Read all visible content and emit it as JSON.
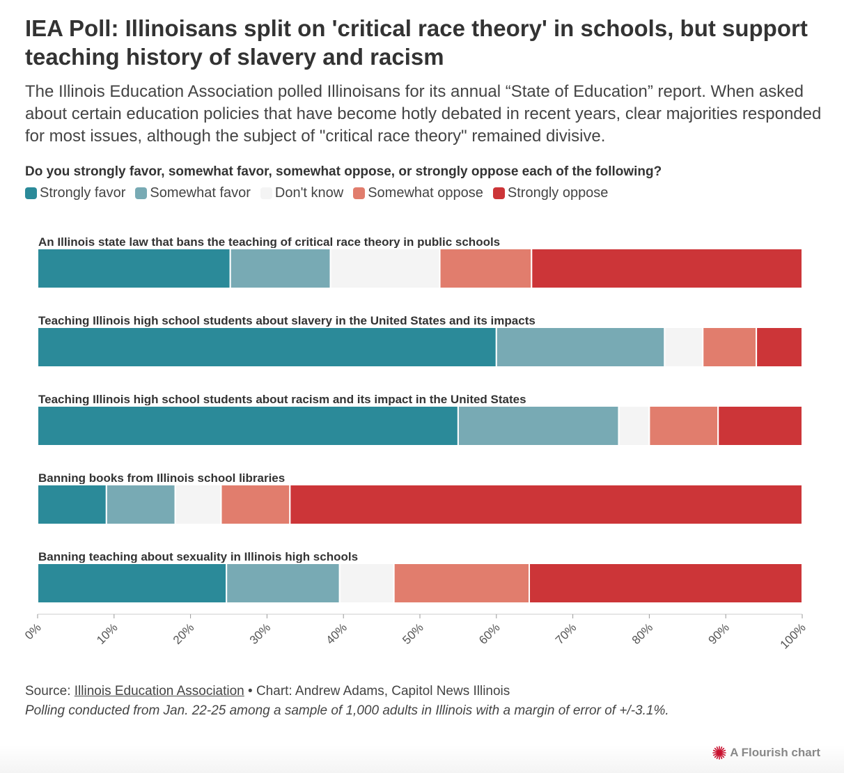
{
  "title": "IEA Poll: Illinoisans split on 'critical race theory' in schools, but support teaching history of slavery and racism",
  "subtitle": "The Illinois Education Association polled Illinoisans for its annual “State of Education” report. When asked about certain education policies that have become hotly debated in recent years, clear majorities responded for most issues, although the subject of \"critical race theory\" remained divisive.",
  "question": "Do you strongly favor, somewhat favor, somewhat oppose, or strongly oppose each of the following?",
  "colors": {
    "strongly_favor": "#2b8a99",
    "somewhat_favor": "#78aab4",
    "dont_know": "#f4f4f4",
    "somewhat_oppose": "#e17d6d",
    "strongly_oppose": "#cc3538"
  },
  "chart_data": {
    "type": "bar",
    "orientation": "horizontal",
    "stacked": true,
    "categories": [
      "An Illinois state law that bans the teaching of critical race theory in public schools",
      "Teaching Illinois high school students about slavery in the United States and its impacts",
      "Teaching Illinois high school students about racism and its impact in the United States",
      "Banning books from Illinois school libraries",
      "Banning teaching about sexuality in Illinois high schools"
    ],
    "series": [
      {
        "name": "Strongly favor",
        "color": "#2b8a99",
        "values": [
          25.2,
          60,
          55,
          9,
          24.7
        ]
      },
      {
        "name": "Somewhat favor",
        "color": "#78aab4",
        "values": [
          13.1,
          22,
          21,
          9,
          14.8
        ]
      },
      {
        "name": "Don't know",
        "color": "#f4f4f4",
        "values": [
          14.3,
          5,
          4,
          6,
          7.1
        ]
      },
      {
        "name": "Somewhat oppose",
        "color": "#e17d6d",
        "values": [
          12,
          7,
          9,
          9,
          17.7
        ]
      },
      {
        "name": "Strongly oppose",
        "color": "#cc3538",
        "values": [
          35.4,
          6,
          11,
          67,
          35.7
        ]
      }
    ],
    "xlim": [
      0,
      100
    ],
    "xticks": [
      "0%",
      "10%",
      "20%",
      "30%",
      "40%",
      "50%",
      "60%",
      "70%",
      "80%",
      "90%",
      "100%"
    ],
    "legend_position": "top-left"
  },
  "footer": {
    "source_prefix": "Source: ",
    "source_link": "Illinois Education Association",
    "source_suffix": " • Chart: Andrew Adams, Capitol News Illinois",
    "note": "Polling conducted from Jan. 22-25 among a sample of 1,000 adults in Illinois with a margin of error of +/-3.1%.",
    "branding": "A Flourish chart"
  }
}
